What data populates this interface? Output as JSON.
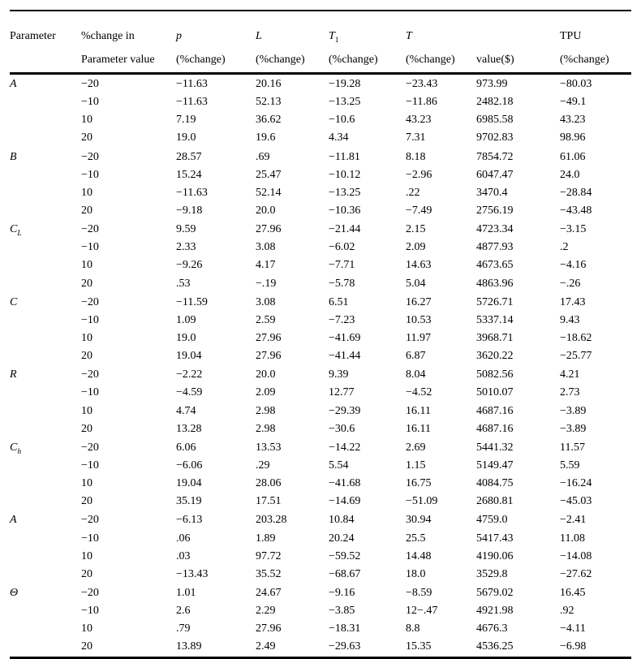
{
  "table": {
    "header": {
      "parameter": "Parameter",
      "change_in_line1": "%change in",
      "change_in_line2": "Parameter value",
      "p": "p",
      "L": "L",
      "T1_base": "T",
      "T1_sub": "1",
      "T": "T",
      "pct_change": "(%change)",
      "value_dollar": "value($)",
      "tpu": "TPU"
    },
    "groups": [
      {
        "param": {
          "base": "A",
          "sub": ""
        },
        "rows": [
          {
            "change": "−20",
            "values": [
              "−11.63",
              "20.16",
              "−19.28",
              "−23.43",
              "973.99",
              "−80.03"
            ]
          },
          {
            "change": "−10",
            "values": [
              "−11.63",
              "52.13",
              "−13.25",
              "−11.86",
              "2482.18",
              "−49.1"
            ]
          },
          {
            "change": "10",
            "values": [
              "7.19",
              "36.62",
              "−10.6",
              "43.23",
              "6985.58",
              "43.23"
            ]
          },
          {
            "change": "20",
            "values": [
              "19.0",
              "19.6",
              "4.34",
              "7.31",
              "9702.83",
              "98.96"
            ]
          }
        ]
      },
      {
        "param": {
          "base": "B",
          "sub": ""
        },
        "rows": [
          {
            "change": "−20",
            "values": [
              "28.57",
              ".69",
              "−11.81",
              "8.18",
              "7854.72",
              "61.06"
            ]
          },
          {
            "change": "−10",
            "values": [
              "15.24",
              "25.47",
              "−10.12",
              "−2.96",
              "6047.47",
              "24.0"
            ]
          },
          {
            "change": "10",
            "values": [
              "−11.63",
              "52.14",
              "−13.25",
              ".22",
              "3470.4",
              "−28.84"
            ]
          },
          {
            "change": "20",
            "values": [
              "−9.18",
              "20.0",
              "−10.36",
              "−7.49",
              "2756.19",
              "−43.48"
            ]
          }
        ]
      },
      {
        "param": {
          "base": "C",
          "sub": "L"
        },
        "rows": [
          {
            "change": "−20",
            "values": [
              "9.59",
              "27.96",
              "−21.44",
              "2.15",
              "4723.34",
              "−3.15"
            ]
          },
          {
            "change": "−10",
            "values": [
              "2.33",
              "3.08",
              "−6.02",
              "2.09",
              "4877.93",
              ".2"
            ]
          },
          {
            "change": "10",
            "values": [
              "−9.26",
              "4.17",
              "−7.71",
              "14.63",
              "4673.65",
              "−4.16"
            ]
          },
          {
            "change": "20",
            "values": [
              ".53",
              "−.19",
              "−5.78",
              "5.04",
              "4863.96",
              "−.26"
            ]
          }
        ]
      },
      {
        "param": {
          "base": "C",
          "sub": ""
        },
        "rows": [
          {
            "change": "−20",
            "values": [
              "−11.59",
              "3.08",
              "6.51",
              "16.27",
              "5726.71",
              "17.43"
            ]
          },
          {
            "change": "−10",
            "values": [
              "1.09",
              "2.59",
              "−7.23",
              "10.53",
              "5337.14",
              "9.43"
            ]
          },
          {
            "change": "10",
            "values": [
              "19.0",
              "27.96",
              "−41.69",
              "11.97",
              "3968.71",
              "−18.62"
            ]
          },
          {
            "change": "20",
            "values": [
              "19.04",
              "27.96",
              "−41.44",
              "6.87",
              "3620.22",
              "−25.77"
            ]
          }
        ]
      },
      {
        "param": {
          "base": "R",
          "sub": ""
        },
        "rows": [
          {
            "change": "−20",
            "values": [
              "−2.22",
              "20.0",
              "9.39",
              "8.04",
              "5082.56",
              "4.21"
            ]
          },
          {
            "change": "−10",
            "values": [
              "−4.59",
              "2.09",
              "12.77",
              "−4.52",
              "5010.07",
              "2.73"
            ]
          },
          {
            "change": "10",
            "values": [
              "4.74",
              "2.98",
              "−29.39",
              "16.11",
              "4687.16",
              "−3.89"
            ]
          },
          {
            "change": "20",
            "values": [
              "13.28",
              "2.98",
              "−30.6",
              "16.11",
              "4687.16",
              "−3.89"
            ]
          }
        ]
      },
      {
        "param": {
          "base": "C",
          "sub": "h"
        },
        "rows": [
          {
            "change": "−20",
            "values": [
              "6.06",
              "13.53",
              "−14.22",
              "2.69",
              "5441.32",
              "11.57"
            ]
          },
          {
            "change": "−10",
            "values": [
              "−6.06",
              ".29",
              "5.54",
              "1.15",
              "5149.47",
              "5.59"
            ]
          },
          {
            "change": "10",
            "values": [
              "19.04",
              "28.06",
              "−41.68",
              "16.75",
              "4084.75",
              "−16.24"
            ]
          },
          {
            "change": "20",
            "values": [
              "35.19",
              "17.51",
              "−14.69",
              "−51.09",
              "2680.81",
              "−45.03"
            ]
          }
        ]
      },
      {
        "param": {
          "base": "A",
          "sub": ""
        },
        "rows": [
          {
            "change": "−20",
            "values": [
              "−6.13",
              "203.28",
              "10.84",
              "30.94",
              "4759.0",
              "−2.41"
            ]
          },
          {
            "change": "−10",
            "values": [
              ".06",
              "1.89",
              "20.24",
              "25.5",
              "5417.43",
              "11.08"
            ]
          },
          {
            "change": "10",
            "values": [
              ".03",
              "97.72",
              "−59.52",
              "14.48",
              "4190.06",
              "−14.08"
            ]
          },
          {
            "change": "20",
            "values": [
              "−13.43",
              "35.52",
              "−68.67",
              "18.0",
              "3529.8",
              "−27.62"
            ]
          }
        ]
      },
      {
        "param": {
          "base": "Θ",
          "sub": ""
        },
        "rows": [
          {
            "change": "−20",
            "values": [
              "1.01",
              "24.67",
              "−9.16",
              "−8.59",
              "5679.02",
              "16.45"
            ]
          },
          {
            "change": "−10",
            "values": [
              "2.6",
              "2.29",
              "−3.85",
              "12−.47",
              "4921.98",
              ".92"
            ]
          },
          {
            "change": "10",
            "values": [
              ".79",
              "27.96",
              "−18.31",
              "8.8",
              "4676.3",
              "−4.11"
            ]
          },
          {
            "change": "20",
            "values": [
              "13.89",
              "2.49",
              "−29.63",
              "15.35",
              "4536.25",
              "−6.98"
            ]
          }
        ]
      }
    ]
  }
}
